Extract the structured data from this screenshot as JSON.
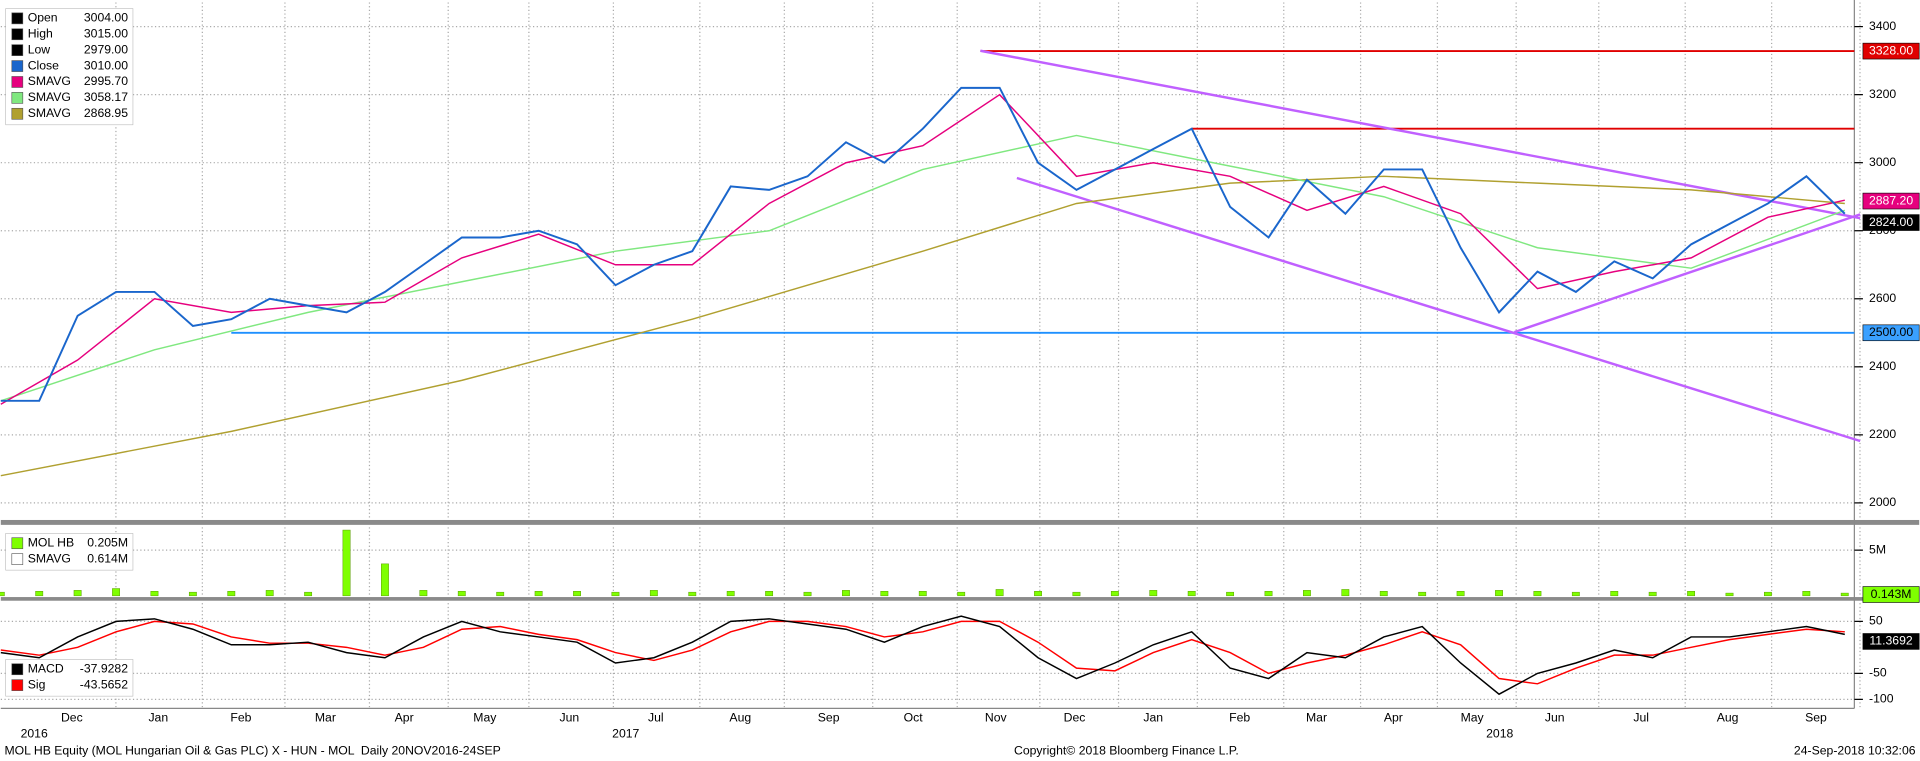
{
  "chart_data": [
    {
      "type": "line",
      "xlim": [
        0,
        96.5
      ],
      "ylim": [
        1957,
        3471
      ],
      "yticks": [
        2000,
        2200,
        2400,
        2600,
        2800,
        3000,
        3200,
        3400
      ],
      "grid": true,
      "xticks": [
        {
          "value": 3.7,
          "label": "Dec"
        },
        {
          "value": 8.2,
          "label": "Jan"
        },
        {
          "value": 12.5,
          "label": "Feb"
        },
        {
          "value": 16.9,
          "label": "Mar"
        },
        {
          "value": 21,
          "label": "Apr"
        },
        {
          "value": 25.2,
          "label": "May"
        },
        {
          "value": 29.6,
          "label": "Jun"
        },
        {
          "value": 34.1,
          "label": "Jul"
        },
        {
          "value": 38.5,
          "label": "Aug"
        },
        {
          "value": 43.1,
          "label": "Sep"
        },
        {
          "value": 47.5,
          "label": "Oct"
        },
        {
          "value": 51.8,
          "label": "Nov"
        },
        {
          "value": 55.9,
          "label": "Dec"
        },
        {
          "value": 60,
          "label": "Jan"
        },
        {
          "value": 64.5,
          "label": "Feb"
        },
        {
          "value": 68.5,
          "label": "Mar"
        },
        {
          "value": 72.5,
          "label": "Apr"
        },
        {
          "value": 76.6,
          "label": "May"
        },
        {
          "value": 80.9,
          "label": "Jun"
        },
        {
          "value": 85.4,
          "label": "Jul"
        },
        {
          "value": 89.9,
          "label": "Aug"
        },
        {
          "value": 94.5,
          "label": "Sep"
        }
      ],
      "year_labels": [
        {
          "value": 1.1,
          "label": "2016"
        },
        {
          "value": 31.9,
          "label": "2017"
        },
        {
          "value": 77.4,
          "label": "2018"
        }
      ],
      "ohlc_legend": [
        {
          "label": "Open",
          "value": "3004.00"
        },
        {
          "label": "High",
          "value": "3015.00"
        },
        {
          "label": "Low",
          "value": "2979.00"
        }
      ],
      "x": [
        0,
        2,
        4,
        6,
        8,
        10,
        12,
        14,
        16,
        18,
        20,
        22,
        24,
        26,
        28,
        30,
        32,
        34,
        36,
        38,
        40,
        42,
        44,
        46,
        48,
        50,
        52,
        54,
        56,
        58,
        60,
        62,
        64,
        66,
        68,
        70,
        72,
        74,
        76,
        78,
        80,
        82,
        84,
        86,
        88,
        90,
        92,
        94,
        96
      ],
      "series": [
        {
          "name": "Close",
          "legend_value": "3010.00",
          "color": "#1a66cc",
          "values": [
            2300,
            2300,
            2550,
            2620,
            2620,
            2520,
            2540,
            2600,
            2580,
            2560,
            2620,
            2700,
            2780,
            2780,
            2800,
            2760,
            2640,
            2700,
            2740,
            2930,
            2920,
            2960,
            3060,
            3000,
            3100,
            3220,
            3220,
            3000,
            2920,
            2980,
            3040,
            3100,
            2870,
            2780,
            2950,
            2850,
            2980,
            2980,
            2750,
            2560,
            2680,
            2620,
            2710,
            2660,
            2760,
            2820,
            2880,
            2960,
            2850
          ]
        },
        {
          "name": "SMAVG",
          "legend_value": "2995.70",
          "color": "#e6007e",
          "x": [
            0,
            4,
            8,
            12,
            16,
            20,
            24,
            28,
            32,
            36,
            40,
            44,
            48,
            52,
            56,
            60,
            64,
            68,
            72,
            76,
            80,
            84,
            88,
            92,
            96
          ],
          "values": [
            2290,
            2420,
            2600,
            2560,
            2580,
            2590,
            2720,
            2790,
            2700,
            2700,
            2880,
            3000,
            3050,
            3200,
            2960,
            3000,
            2960,
            2860,
            2930,
            2850,
            2630,
            2680,
            2720,
            2840,
            2890
          ]
        },
        {
          "name": "SMAVG",
          "legend_value": "3058.17",
          "color": "#80e880",
          "x": [
            0,
            8,
            16,
            24,
            32,
            40,
            48,
            56,
            64,
            72,
            80,
            88,
            96
          ],
          "values": [
            2300,
            2450,
            2560,
            2650,
            2740,
            2800,
            2980,
            3080,
            2990,
            2900,
            2750,
            2690,
            2860
          ]
        },
        {
          "name": "SMAVG",
          "legend_value": "2868.95",
          "color": "#b0a030",
          "x": [
            0,
            12,
            24,
            36,
            48,
            56,
            64,
            72,
            80,
            88,
            96
          ],
          "values": [
            2080,
            2210,
            2360,
            2540,
            2740,
            2880,
            2940,
            2960,
            2940,
            2920,
            2880
          ]
        }
      ],
      "hlines": [
        {
          "value": 3328,
          "start": 51,
          "color": "#e00000"
        },
        {
          "value": 3100,
          "start": 62,
          "color": "#e00000"
        },
        {
          "value": 2500,
          "start": 12,
          "color": "#1e90ff"
        }
      ],
      "trendlines": [
        {
          "x": [
            51,
            96.8
          ],
          "y": [
            3329,
            2837
          ]
        },
        {
          "x": [
            52.9,
            96.8
          ],
          "y": [
            2955,
            2182
          ]
        },
        {
          "x": [
            78.8,
            96.8
          ],
          "y": [
            2502,
            2848
          ]
        }
      ],
      "trend_color": "#c060ff",
      "price_labels": [
        {
          "value": 3328,
          "label": "3328.00",
          "color": "#e00000",
          "text_color": "#ffffff"
        },
        {
          "value": 2887.2,
          "label": "2887.20",
          "color": "#e6007e",
          "text_color": "#ffffff"
        },
        {
          "value": 2824,
          "label": "2824.00",
          "color": "#000000",
          "text_color": "#ffffff"
        },
        {
          "value": 2500,
          "label": "2500.00",
          "color": "#3aa0ff",
          "text_color": "#000000"
        }
      ]
    },
    {
      "type": "bar",
      "xlim": [
        0,
        96.5
      ],
      "ylim": [
        0,
        7.5
      ],
      "yticks": [
        {
          "value": 5,
          "label": "5M"
        }
      ],
      "x": [
        0,
        2,
        4,
        6,
        8,
        10,
        12,
        14,
        16,
        18,
        20,
        22,
        24,
        26,
        28,
        30,
        32,
        34,
        36,
        38,
        40,
        42,
        44,
        46,
        48,
        50,
        52,
        54,
        56,
        58,
        60,
        62,
        64,
        66,
        68,
        70,
        72,
        74,
        76,
        78,
        80,
        82,
        84,
        86,
        88,
        90,
        92,
        94,
        96
      ],
      "series": [
        {
          "name": "MOL HB",
          "legend_value": "0.205M",
          "color": "#7fff00",
          "values": [
            0.4,
            0.5,
            0.6,
            0.8,
            0.5,
            0.4,
            0.5,
            0.6,
            0.4,
            7.2,
            3.5,
            0.6,
            0.5,
            0.4,
            0.5,
            0.5,
            0.4,
            0.6,
            0.4,
            0.5,
            0.5,
            0.4,
            0.6,
            0.5,
            0.5,
            0.4,
            0.7,
            0.5,
            0.4,
            0.5,
            0.6,
            0.5,
            0.4,
            0.5,
            0.6,
            0.7,
            0.5,
            0.4,
            0.5,
            0.6,
            0.5,
            0.4,
            0.5,
            0.4,
            0.5,
            0.3,
            0.4,
            0.5,
            0.3
          ]
        }
      ],
      "legend_extra": [
        {
          "name": "SMAVG",
          "value": "0.614M"
        }
      ],
      "last_label": {
        "value": 0.143,
        "label": "0.143M",
        "color": "#7fff00"
      }
    },
    {
      "type": "line",
      "xlim": [
        0,
        96.5
      ],
      "ylim": [
        -115,
        85
      ],
      "yticks": [
        50,
        -50,
        -100
      ],
      "x": [
        0,
        2,
        4,
        6,
        8,
        10,
        12,
        14,
        16,
        18,
        20,
        22,
        24,
        26,
        28,
        30,
        32,
        34,
        36,
        38,
        40,
        42,
        44,
        46,
        48,
        50,
        52,
        54,
        56,
        58,
        60,
        62,
        64,
        66,
        68,
        70,
        72,
        74,
        76,
        78,
        80,
        82,
        84,
        86,
        88,
        90,
        92,
        94,
        96
      ],
      "series": [
        {
          "name": "MACD",
          "legend_value": "-37.9282",
          "color": "#000000",
          "values": [
            -10,
            -20,
            20,
            50,
            55,
            35,
            5,
            5,
            10,
            -10,
            -20,
            20,
            50,
            30,
            20,
            10,
            -30,
            -20,
            10,
            50,
            55,
            45,
            35,
            10,
            40,
            60,
            40,
            -20,
            -60,
            -30,
            5,
            30,
            -40,
            -60,
            -10,
            -20,
            20,
            40,
            -30,
            -90,
            -50,
            -30,
            -5,
            -20,
            20,
            20,
            30,
            40,
            25
          ]
        },
        {
          "name": "Sig",
          "legend_value": "-43.5652",
          "color": "#ff0000",
          "values": [
            -5,
            -15,
            0,
            30,
            50,
            45,
            20,
            8,
            8,
            0,
            -15,
            0,
            35,
            40,
            25,
            15,
            -10,
            -25,
            -5,
            30,
            50,
            50,
            40,
            20,
            30,
            50,
            50,
            10,
            -40,
            -45,
            -10,
            15,
            -10,
            -50,
            -30,
            -15,
            5,
            30,
            5,
            -60,
            -70,
            -40,
            -15,
            -15,
            0,
            15,
            25,
            35,
            30
          ]
        }
      ],
      "last_label": {
        "value": 11.3692,
        "label": "11.3692",
        "color": "#000000"
      }
    }
  ],
  "footer": {
    "left": "MOL HB Equity (MOL Hungarian Oil & Gas PLC) X - HUN - MOL  Daily 20NOV2016-24SEP",
    "center": "Copyright© 2018 Bloomberg Finance L.P.",
    "right": "24-Sep-2018 10:32:06"
  }
}
